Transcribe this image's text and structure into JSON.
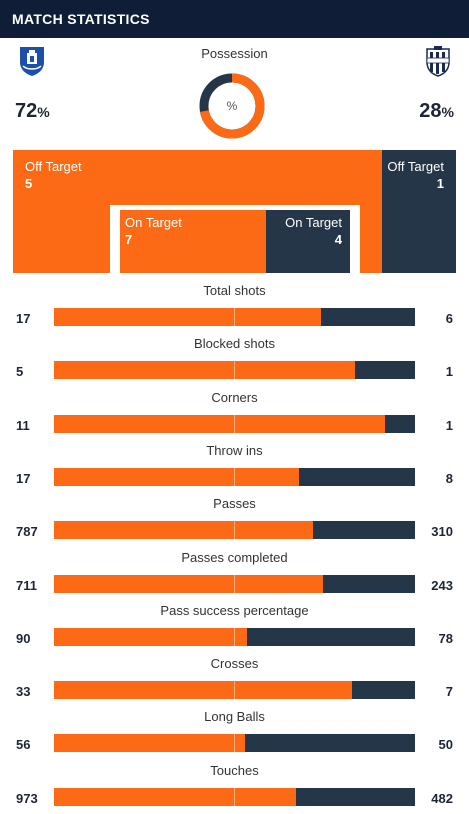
{
  "header": {
    "title": "MATCH STATISTICS"
  },
  "colors": {
    "home": "#fd6a16",
    "away": "#253648",
    "header": "#0f1e36"
  },
  "home": {
    "crest_icon": "everton-crest-icon",
    "possession": "72",
    "possession_unit": "%"
  },
  "away": {
    "crest_icon": "west-brom-crest-icon",
    "possession": "28",
    "possession_unit": "%"
  },
  "possession": {
    "label": "Possession",
    "center": "%",
    "home_fraction": 0.72
  },
  "shots": {
    "off_target_label": "Off Target",
    "on_target_label": "On Target",
    "home_off": "5",
    "away_off": "1",
    "home_on": "7",
    "away_on": "4"
  },
  "stats": [
    {
      "label": "Total shots",
      "home": "17",
      "away": "6",
      "home_fraction": 0.74
    },
    {
      "label": "Blocked shots",
      "home": "5",
      "away": "1",
      "home_fraction": 0.834
    },
    {
      "label": "Corners",
      "home": "11",
      "away": "1",
      "home_fraction": 0.917
    },
    {
      "label": "Throw ins",
      "home": "17",
      "away": "8",
      "home_fraction": 0.68
    },
    {
      "label": "Passes",
      "home": "787",
      "away": "310",
      "home_fraction": 0.717
    },
    {
      "label": "Passes completed",
      "home": "711",
      "away": "243",
      "home_fraction": 0.745
    },
    {
      "label": "Pass success percentage",
      "home": "90",
      "away": "78",
      "home_fraction": 0.536
    },
    {
      "label": "Crosses",
      "home": "33",
      "away": "7",
      "home_fraction": 0.825
    },
    {
      "label": "Long Balls",
      "home": "56",
      "away": "50",
      "home_fraction": 0.528
    },
    {
      "label": "Touches",
      "home": "973",
      "away": "482",
      "home_fraction": 0.669
    }
  ]
}
